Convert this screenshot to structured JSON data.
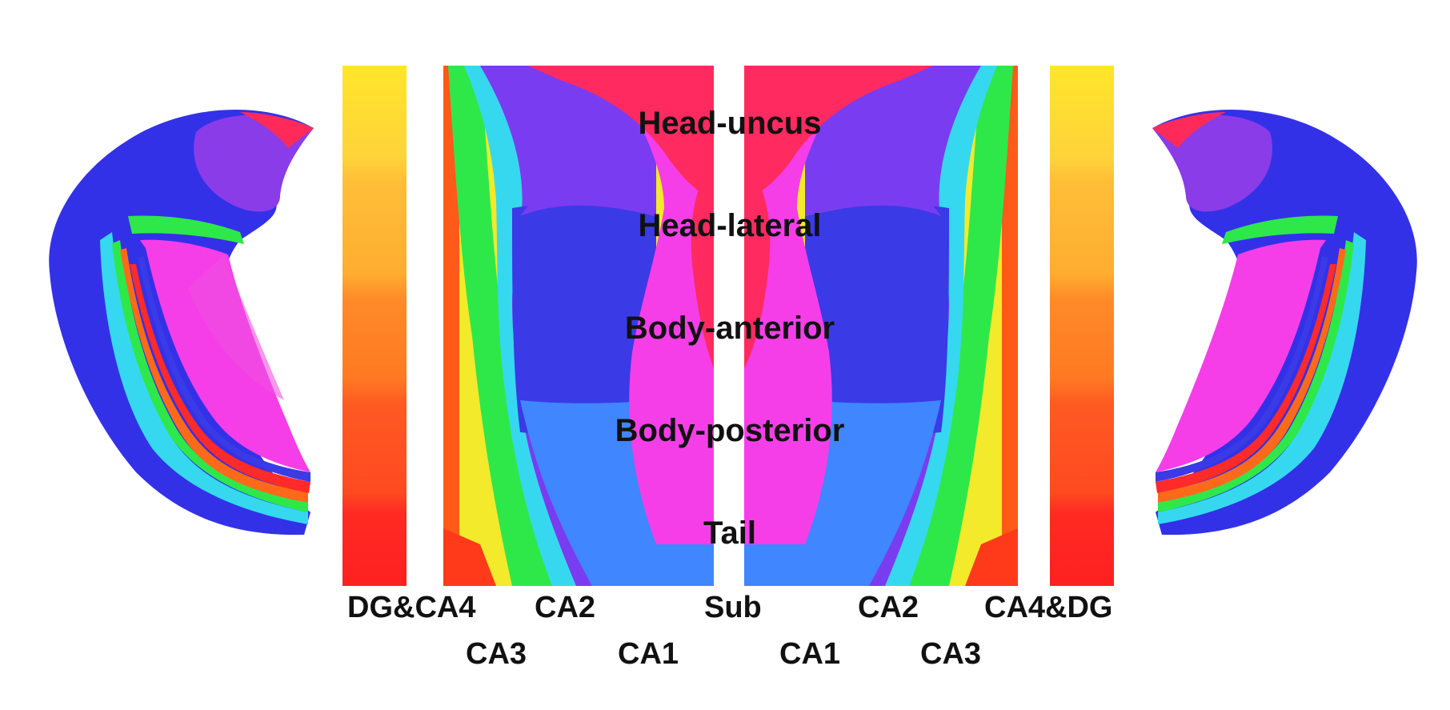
{
  "region_labels": {
    "head_uncus": "Head-uncus",
    "head_lateral": "Head-lateral",
    "body_anterior": "Body-anterior",
    "body_posterior": "Body-posterior",
    "tail": "Tail"
  },
  "subfield_labels": {
    "left": {
      "dg_ca4": "DG&CA4",
      "ca3": "CA3",
      "ca2": "CA2",
      "ca1": "CA1"
    },
    "center": {
      "sub": "Sub"
    },
    "right": {
      "ca1": "CA1",
      "ca2": "CA2",
      "ca3": "CA3",
      "ca4_dg": "CA4&DG"
    }
  },
  "colors": {
    "sub": "#ff2a5f",
    "ca1": "#f53ee8",
    "ca2_head": "#7a3cf0",
    "ca2_body": "#3a3ae6",
    "ca2_tail": "#3f86ff",
    "ca3": "#36d8f0",
    "ca4": "#2ee84a",
    "dg_outer": "#ff6a1a",
    "dg_edge": "#ff2a2a",
    "bar_gradient": [
      "#ffe82a",
      "#ffc62e",
      "#ff9a2a",
      "#ff6a22",
      "#ff2a2a"
    ]
  }
}
